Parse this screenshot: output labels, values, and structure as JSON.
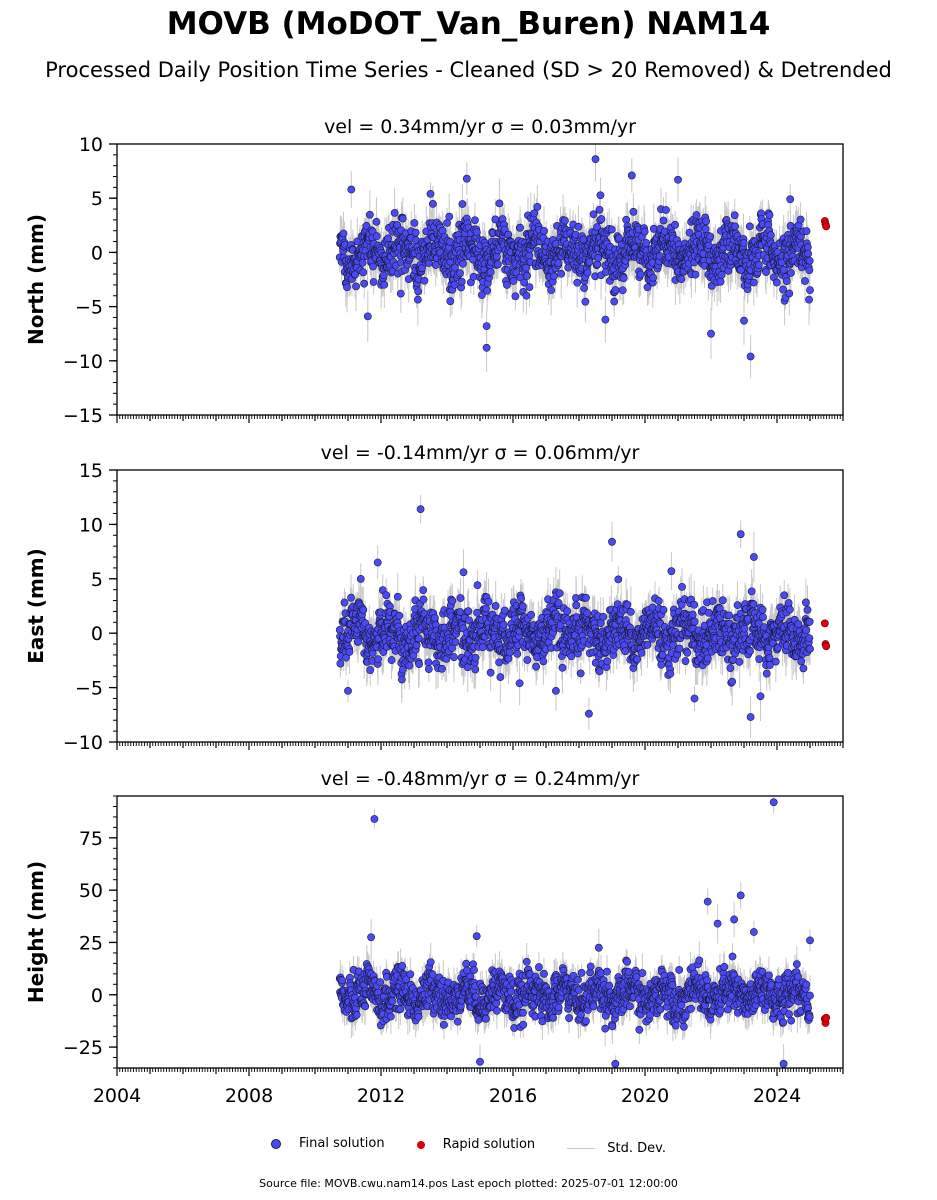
{
  "title": "MOVB (MoDOT_Van_Buren) NAM14",
  "subtitle": "Processed Daily Position Time Series - Cleaned (SD > 20 Removed) & Detrended",
  "colors": {
    "final": "#4a4af5",
    "rapid": "#e0000e",
    "stddev": "#c8c8c8",
    "marker_edge": "#1a1a3a"
  },
  "legend": {
    "final": "Final solution",
    "rapid": "Rapid solution",
    "stddev": "Std. Dev."
  },
  "footer": "Source file: MOVB.cwu.nam14.pos  Last epoch plotted: 2025-07-01 12:00:00",
  "chart_data": [
    {
      "type": "scatter",
      "component": "north",
      "title": "vel = 0.34mm/yr   σ = 0.03mm/yr",
      "ylabel": "North (mm)",
      "xlim": [
        2004,
        2026
      ],
      "ylim": [
        -15,
        10
      ],
      "yticks": [
        -15,
        -10,
        -5,
        0,
        5,
        10
      ],
      "xticks": [
        2004,
        2008,
        2012,
        2016,
        2020,
        2024
      ],
      "show_xticklabels": false,
      "grid": false,
      "data_range": [
        2010.75,
        2025.0
      ],
      "noise_sd": 1.6,
      "outliers": [
        [
          2011.1,
          5.8
        ],
        [
          2011.6,
          -5.9
        ],
        [
          2012.6,
          -3.8
        ],
        [
          2013.5,
          5.4
        ],
        [
          2014.1,
          -4.5
        ],
        [
          2014.6,
          6.8
        ],
        [
          2015.2,
          -8.8
        ],
        [
          2015.2,
          -6.8
        ],
        [
          2016.5,
          -3.2
        ],
        [
          2018.5,
          8.6
        ],
        [
          2018.8,
          -6.2
        ],
        [
          2019.6,
          7.1
        ],
        [
          2021.0,
          6.7
        ],
        [
          2022.0,
          -7.5
        ],
        [
          2023.2,
          -9.6
        ],
        [
          2023.0,
          -6.3
        ],
        [
          2024.4,
          4.9
        ]
      ],
      "rapid": [
        [
          2025.45,
          2.9
        ],
        [
          2025.47,
          2.6
        ],
        [
          2025.49,
          2.4
        ]
      ]
    },
    {
      "type": "scatter",
      "component": "east",
      "title": "vel = -0.14mm/yr   σ = 0.06mm/yr",
      "ylabel": "East (mm)",
      "xlim": [
        2004,
        2026
      ],
      "ylim": [
        -10,
        15
      ],
      "yticks": [
        -10,
        -5,
        0,
        5,
        10,
        15
      ],
      "xticks": [
        2004,
        2008,
        2012,
        2016,
        2020,
        2024
      ],
      "show_xticklabels": false,
      "grid": false,
      "data_range": [
        2010.75,
        2025.0
      ],
      "noise_sd": 1.6,
      "outliers": [
        [
          2011.0,
          -5.3
        ],
        [
          2011.9,
          6.5
        ],
        [
          2013.2,
          11.4
        ],
        [
          2014.5,
          5.6
        ],
        [
          2016.2,
          -4.6
        ],
        [
          2017.3,
          -5.3
        ],
        [
          2018.3,
          -7.4
        ],
        [
          2019.0,
          8.4
        ],
        [
          2020.8,
          5.7
        ],
        [
          2021.5,
          -6.0
        ],
        [
          2022.9,
          9.1
        ],
        [
          2023.3,
          7.0
        ],
        [
          2023.2,
          -7.7
        ],
        [
          2023.5,
          -5.8
        ]
      ],
      "rapid": [
        [
          2025.45,
          0.9
        ],
        [
          2025.47,
          -1.0
        ],
        [
          2025.49,
          -1.2
        ]
      ]
    },
    {
      "type": "scatter",
      "component": "height",
      "title": "vel = -0.48mm/yr   σ = 0.24mm/yr",
      "ylabel": "Height (mm)",
      "xlim": [
        2004,
        2026
      ],
      "ylim": [
        -35,
        95
      ],
      "yticks": [
        -25,
        0,
        25,
        50,
        75
      ],
      "xticks": [
        2004,
        2008,
        2012,
        2016,
        2020,
        2024
      ],
      "xticklabels": [
        "2004",
        "2008",
        "2012",
        "2016",
        "2020",
        "2024"
      ],
      "show_xticklabels": true,
      "grid": false,
      "data_range": [
        2010.75,
        2025.0
      ],
      "noise_sd": 6.5,
      "outliers": [
        [
          2011.8,
          84.0
        ],
        [
          2011.7,
          27.5
        ],
        [
          2014.9,
          28.0
        ],
        [
          2018.6,
          22.5
        ],
        [
          2021.9,
          44.5
        ],
        [
          2022.2,
          34.0
        ],
        [
          2022.7,
          36.0
        ],
        [
          2022.9,
          47.5
        ],
        [
          2023.9,
          92.0
        ],
        [
          2023.3,
          30.0
        ],
        [
          2025.0,
          26.0
        ],
        [
          2015.0,
          -32.0
        ],
        [
          2019.1,
          -33.0
        ],
        [
          2024.2,
          -33.0
        ]
      ],
      "rapid": [
        [
          2025.45,
          -11.5
        ],
        [
          2025.47,
          -13.5
        ],
        [
          2025.49,
          -11.0
        ]
      ]
    }
  ]
}
